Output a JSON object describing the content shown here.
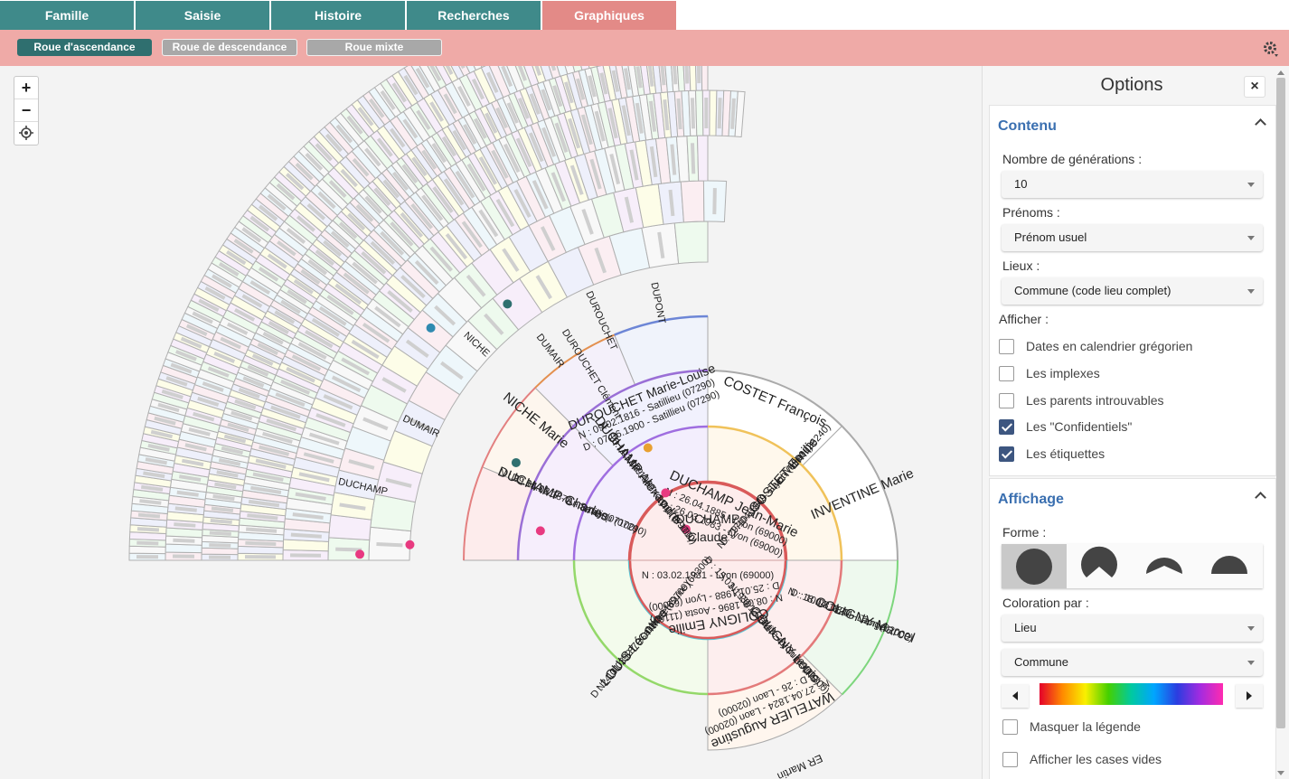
{
  "tabs": [
    {
      "label": "Famille",
      "active": false
    },
    {
      "label": "Saisie",
      "active": false
    },
    {
      "label": "Histoire",
      "active": false
    },
    {
      "label": "Recherches",
      "active": false
    },
    {
      "label": "Graphiques",
      "active": true
    }
  ],
  "subtabs": [
    {
      "label": "Roue d'ascendance",
      "active": true
    },
    {
      "label": "Roue de descendance",
      "active": false
    },
    {
      "label": "Roue mixte",
      "active": false
    }
  ],
  "icons": {
    "settings": "gear-icon",
    "locate": "crosshair-icon",
    "close": "close-icon"
  },
  "zoom": {
    "in_label": "+",
    "out_label": "−"
  },
  "chart": {
    "root_name": "DUCHAMP",
    "root_first": "Claude",
    "root_birth": "N : 03.02.1931 - Lyon (69000)",
    "people": [
      {
        "name": "DUCHAMP Jean-Marie",
        "n": "N : 26.04.1885 - Lyon (69000)",
        "d": "D : 26.03.1983 - Lyon (69000)"
      },
      {
        "name": "COLIGNY Emilie",
        "n": "N : 08.09.1896 - Aosta (11100)",
        "d": "D : 25.01.1988 - Lyon (69000)"
      },
      {
        "name": "DUCHAMP Alexandre",
        "n": "N : 16.11.1849 - Annonay (07100)",
        "d": "D : 03.03.1937 - Lyon (69000)"
      },
      {
        "name": "COSTET Emilie",
        "n": "N : 29.10.1860 - Saint-Vallier (26240)",
        "d": "D : 17.04.1949 - Lyon (69000)"
      },
      {
        "name": "COLIGNY Louis",
        "n": "N : 20.12.1843 - Lyon (69000)",
        "d": "D : 15.03.1930 - Caluire-et-Cuire (69300)"
      },
      {
        "name": "LOUIS Léontine",
        "n": "N : 13.03.1870 - Givors (69700)",
        "d": "D : 24.01.1927 - Caluire-et-Cuire (69300)"
      },
      {
        "name": "DUCHAMP Charles",
        "n": "N : 29.04.1817 - Annonay (07100)",
        "d": "D : 15.02.1878 - Satillieu (07290)"
      },
      {
        "name": "DUROUCHET Marie-Louise",
        "n": "N : 09.02.1816 - Satillieu (07290)",
        "d": "D : 07.06.1900 - Satillieu (07290)"
      },
      {
        "name": "COSTET François",
        "n": "",
        "d": ""
      },
      {
        "name": "INVENTINE Marie",
        "n": "",
        "d": ""
      },
      {
        "name": "COLIGNY Marcel",
        "n": "N : 18.04.1820 - Laon (02000)",
        "d": "D : 10.08.1844 - Tanger"
      },
      {
        "name": "WATELIER Augustine",
        "n": "N : 27.04.1824 - Laon (02000)",
        "d": "D : 26 - Laon (02000)"
      },
      {
        "name": "NICHE Marie",
        "n": "",
        "d": ""
      },
      {
        "name": "DUROUCHET Clément",
        "n": "",
        "d": ""
      },
      {
        "name": "DUMAIR",
        "n": "",
        "d": ""
      },
      {
        "name": "DUROUCHET",
        "n": "",
        "d": ""
      },
      {
        "name": "DUPONT",
        "n": "",
        "d": ""
      },
      {
        "name": "NICHE",
        "n": "",
        "d": ""
      },
      {
        "name": "DUMAIR",
        "n": "",
        "d": ""
      },
      {
        "name": "DUCHAMP",
        "n": "",
        "d": ""
      },
      {
        "name": "ER Martin",
        "n": "",
        "d": ""
      }
    ]
  },
  "options": {
    "title": "Options",
    "close": "×",
    "contenu": {
      "heading": "Contenu",
      "generations_label": "Nombre de générations :",
      "generations_value": "10",
      "prenoms_label": "Prénoms :",
      "prenoms_value": "Prénom usuel",
      "lieux_label": "Lieux :",
      "lieux_value": "Commune (code lieu complet)",
      "afficher_label": "Afficher :",
      "checks": [
        {
          "label": "Dates en calendrier grégorien",
          "checked": false
        },
        {
          "label": "Les implexes",
          "checked": false
        },
        {
          "label": "Les parents introuvables",
          "checked": false
        },
        {
          "label": "Les \"Confidentiels\"",
          "checked": true
        },
        {
          "label": "Les étiquettes",
          "checked": true
        }
      ]
    },
    "affichage": {
      "heading": "Affichage",
      "forme_label": "Forme :",
      "coloration_label": "Coloration par :",
      "coloration_value": "Lieu",
      "niveau_value": "Commune",
      "checks": [
        {
          "label": "Masquer la légende",
          "checked": false
        },
        {
          "label": "Afficher les cases vides",
          "checked": false
        }
      ]
    }
  },
  "colors": {
    "teal": "#3f8a8a",
    "pink": "#efaaa7",
    "accent": "#3a6fb0"
  }
}
